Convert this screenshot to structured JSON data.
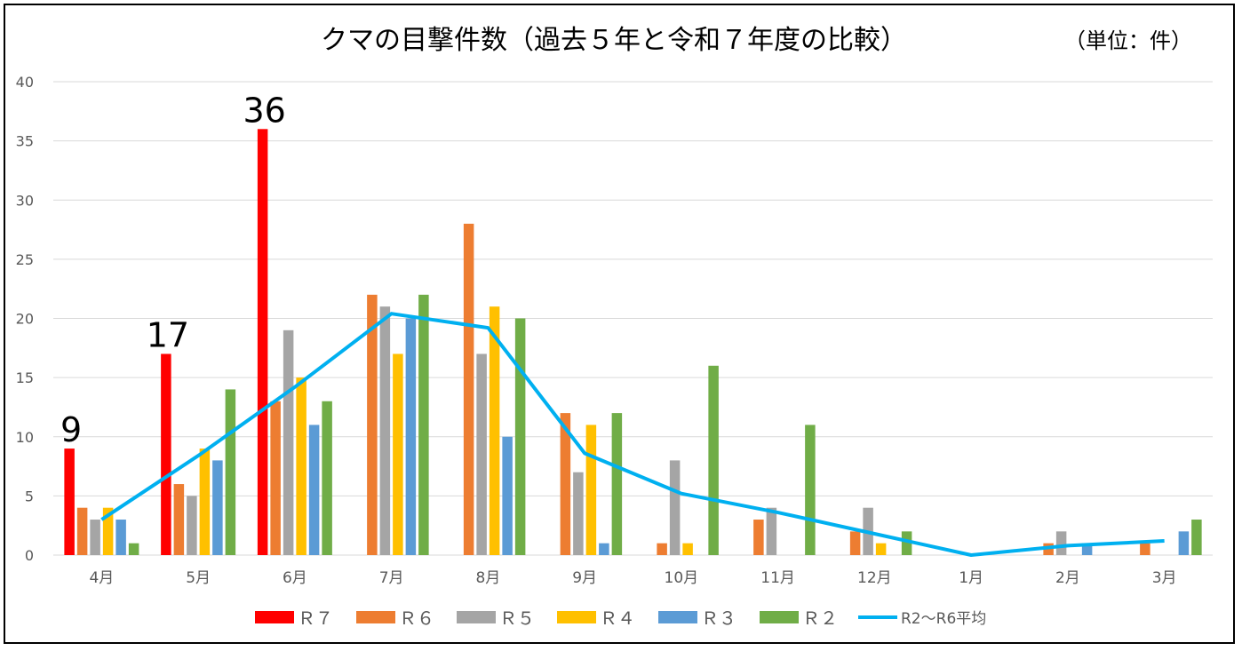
{
  "chart_data": {
    "type": "bar",
    "title": "クマの目撃件数（過去５年と令和７年度の比較）",
    "unit_label": "（単位：件）",
    "categories": [
      "4月",
      "5月",
      "6月",
      "7月",
      "8月",
      "9月",
      "10月",
      "11月",
      "12月",
      "1月",
      "2月",
      "3月"
    ],
    "ylim": [
      0,
      40
    ],
    "yticks": [
      0,
      5,
      10,
      15,
      20,
      25,
      30,
      35,
      40
    ],
    "grid": true,
    "legend_position": "bottom",
    "series": [
      {
        "name": "Ｒ７",
        "color": "#ff0000",
        "values": [
          9,
          17,
          36,
          null,
          null,
          null,
          null,
          null,
          null,
          null,
          null,
          null
        ]
      },
      {
        "name": "Ｒ６",
        "color": "#ed7d31",
        "values": [
          4,
          6,
          13,
          22,
          28,
          12,
          1,
          3,
          2,
          0,
          1,
          1
        ]
      },
      {
        "name": "Ｒ５",
        "color": "#a5a5a5",
        "values": [
          3,
          5,
          19,
          21,
          17,
          7,
          8,
          4,
          4,
          0,
          2,
          0
        ]
      },
      {
        "name": "Ｒ４",
        "color": "#ffc000",
        "values": [
          4,
          9,
          15,
          17,
          21,
          11,
          1,
          0,
          1,
          0,
          0,
          0
        ]
      },
      {
        "name": "Ｒ３",
        "color": "#5b9bd5",
        "values": [
          3,
          8,
          11,
          20,
          10,
          1,
          0,
          0,
          0,
          0,
          1,
          2
        ]
      },
      {
        "name": "Ｒ２",
        "color": "#70ad47",
        "values": [
          1,
          14,
          13,
          22,
          20,
          12,
          16,
          11,
          2,
          0,
          0,
          3
        ]
      }
    ],
    "line_series": {
      "name": "R2～R6平均",
      "color": "#00b0f0",
      "values": [
        3.0,
        8.4,
        14.2,
        20.4,
        19.2,
        8.6,
        5.2,
        3.6,
        1.8,
        0.0,
        0.8,
        1.2
      ]
    },
    "data_labels": [
      {
        "series": "Ｒ７",
        "category": "4月",
        "text": "9"
      },
      {
        "series": "Ｒ７",
        "category": "5月",
        "text": "17"
      },
      {
        "series": "Ｒ７",
        "category": "6月",
        "text": "36"
      }
    ]
  }
}
